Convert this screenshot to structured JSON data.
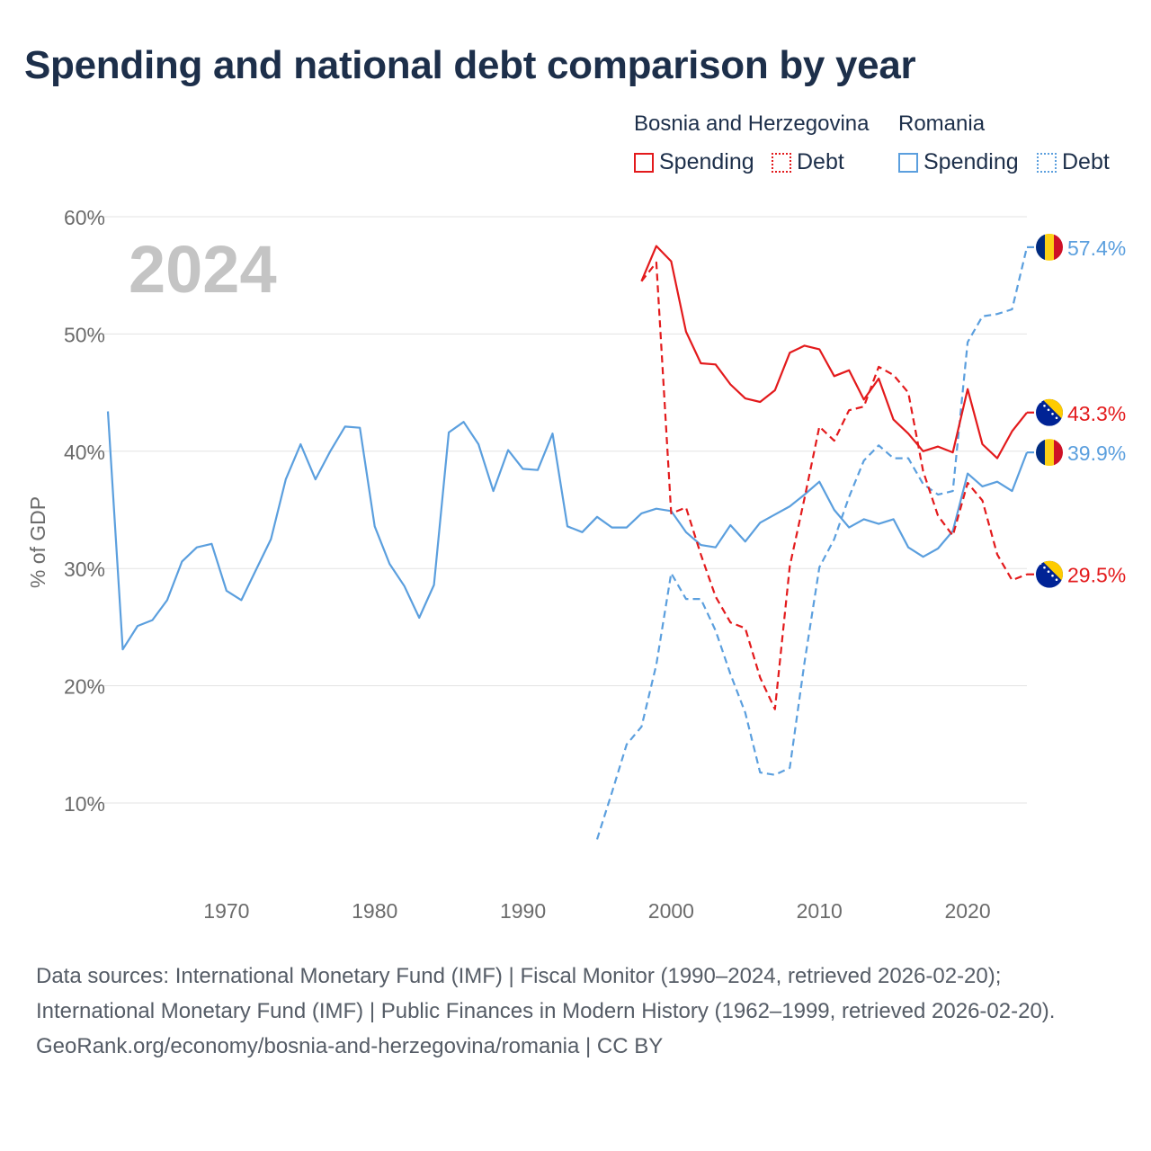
{
  "title": "Spending and national debt comparison by year",
  "legend": {
    "bih": "Bosnia and Herzegovina",
    "ro": "Romania",
    "spending": "Spending",
    "debt": "Debt"
  },
  "colors": {
    "bih": "#e31a1c",
    "ro": "#5b9fde",
    "grid": "#e3e3e3",
    "axis_text": "#6b6b6b",
    "year_watermark": "#c4c4c4"
  },
  "footer": {
    "sources": "Data sources: International Monetary Fund (IMF) | Fiscal Monitor (1990–2024, retrieved 2026-02-20); International Monetary Fund (IMF) | Public Finances in Modern History (1962–1999, retrieved 2026-02-20).",
    "credit": "GeoRank.org/economy/bosnia-and-herzegovina/romania | CC BY"
  },
  "chart_data": {
    "type": "line",
    "title": "Spending and national debt comparison by year",
    "year_label": "2024",
    "ylabel": "% of GDP",
    "xlabel": "",
    "xlim": [
      1962,
      2024
    ],
    "ylim": [
      5,
      62
    ],
    "yticks": [
      10,
      20,
      30,
      40,
      50,
      60
    ],
    "ytick_labels": [
      "10%",
      "20%",
      "30%",
      "40%",
      "50%",
      "60%"
    ],
    "xticks": [
      1970,
      1980,
      1990,
      2000,
      2010,
      2020
    ],
    "xtick_labels": [
      "1970",
      "1980",
      "1990",
      "2000",
      "2010",
      "2020"
    ],
    "grid": true,
    "series": [
      {
        "name": "Romania Spending",
        "country": "Romania",
        "measure": "Spending",
        "style": "solid",
        "color": "#5b9fde",
        "end_label": "39.9%",
        "x": [
          1962,
          1963,
          1964,
          1965,
          1966,
          1967,
          1968,
          1969,
          1970,
          1971,
          1972,
          1973,
          1974,
          1975,
          1976,
          1977,
          1978,
          1979,
          1980,
          1981,
          1982,
          1983,
          1984,
          1985,
          1986,
          1987,
          1988,
          1989,
          1990,
          1991,
          1992,
          1993,
          1994,
          1995,
          1996,
          1997,
          1998,
          1999,
          2000,
          2001,
          2002,
          2003,
          2004,
          2005,
          2006,
          2007,
          2008,
          2009,
          2010,
          2011,
          2012,
          2013,
          2014,
          2015,
          2016,
          2017,
          2018,
          2019,
          2020,
          2021,
          2022,
          2023,
          2024
        ],
        "values": [
          43.4,
          23.1,
          25.1,
          25.6,
          27.3,
          30.6,
          31.8,
          32.1,
          28.1,
          27.3,
          29.9,
          32.5,
          37.6,
          40.6,
          37.6,
          40.0,
          42.1,
          42.0,
          33.6,
          30.4,
          28.5,
          25.8,
          28.6,
          41.6,
          42.5,
          40.6,
          36.6,
          40.1,
          38.5,
          38.4,
          41.5,
          33.6,
          33.1,
          34.4,
          33.5,
          33.5,
          34.7,
          35.1,
          34.9,
          33.1,
          32.0,
          31.8,
          33.7,
          32.3,
          33.9,
          34.6,
          35.3,
          36.3,
          37.4,
          35.0,
          33.5,
          34.2,
          33.8,
          34.2,
          31.8,
          31.0,
          31.7,
          33.2,
          38.1,
          37.0,
          37.4,
          36.6,
          39.9
        ]
      },
      {
        "name": "Romania Debt",
        "country": "Romania",
        "measure": "Debt",
        "style": "dashed",
        "color": "#5b9fde",
        "end_label": "57.4%",
        "x": [
          1995,
          1996,
          1997,
          1998,
          1999,
          2000,
          2001,
          2002,
          2003,
          2004,
          2005,
          2006,
          2007,
          2008,
          2009,
          2010,
          2011,
          2012,
          2013,
          2014,
          2015,
          2016,
          2017,
          2018,
          2019,
          2020,
          2021,
          2022,
          2023,
          2024
        ],
        "values": [
          6.9,
          10.9,
          15.0,
          16.5,
          21.8,
          29.6,
          27.4,
          27.4,
          24.7,
          21.0,
          17.7,
          12.6,
          12.4,
          13.0,
          22.0,
          30.1,
          32.5,
          36.1,
          39.2,
          40.5,
          39.4,
          39.4,
          37.2,
          36.3,
          36.6,
          49.3,
          51.5,
          51.7,
          52.1,
          57.4
        ]
      },
      {
        "name": "Bosnia and Herzegovina Spending",
        "country": "Bosnia and Herzegovina",
        "measure": "Spending",
        "style": "solid",
        "color": "#e31a1c",
        "end_label": "43.3%",
        "x": [
          1998,
          1999,
          2000,
          2001,
          2002,
          2003,
          2004,
          2005,
          2006,
          2007,
          2008,
          2009,
          2010,
          2011,
          2012,
          2013,
          2014,
          2015,
          2016,
          2017,
          2018,
          2019,
          2020,
          2021,
          2022,
          2023,
          2024
        ],
        "values": [
          54.5,
          57.5,
          56.2,
          50.2,
          47.5,
          47.4,
          45.7,
          44.5,
          44.2,
          45.2,
          48.4,
          49.0,
          48.7,
          46.4,
          46.9,
          44.4,
          46.2,
          42.7,
          41.5,
          40.0,
          40.4,
          39.9,
          45.3,
          40.6,
          39.4,
          41.7,
          43.3
        ]
      },
      {
        "name": "Bosnia and Herzegovina Debt",
        "country": "Bosnia and Herzegovina",
        "measure": "Debt",
        "style": "dashed",
        "color": "#e31a1c",
        "end_label": "29.5%",
        "x": [
          1998,
          1999,
          2000,
          2001,
          2002,
          2003,
          2004,
          2005,
          2006,
          2007,
          2008,
          2009,
          2010,
          2011,
          2012,
          2013,
          2014,
          2015,
          2016,
          2017,
          2018,
          2019,
          2020,
          2021,
          2022,
          2023,
          2024
        ],
        "values": [
          54.5,
          56.1,
          34.7,
          35.2,
          31.2,
          27.6,
          25.4,
          24.9,
          20.7,
          18.0,
          30.2,
          36.0,
          42.1,
          40.9,
          43.5,
          43.8,
          47.2,
          46.5,
          45.0,
          38.3,
          34.5,
          32.8,
          37.3,
          35.8,
          31.2,
          29.0,
          29.5
        ]
      }
    ]
  }
}
